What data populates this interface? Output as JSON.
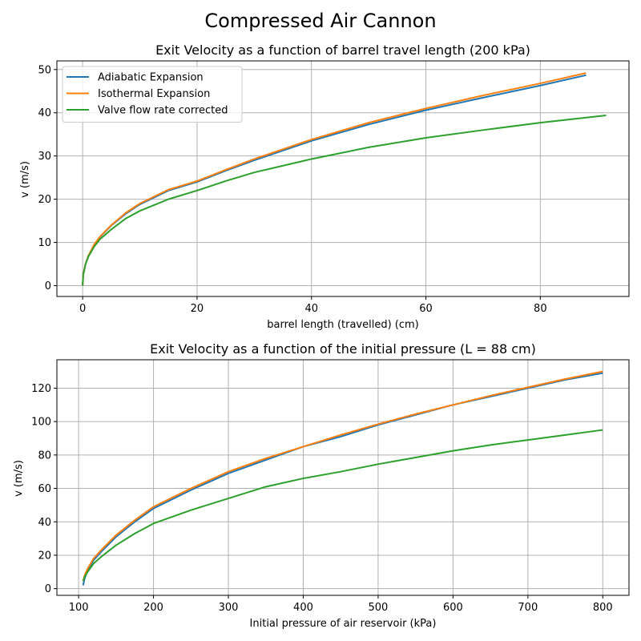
{
  "figure": {
    "title": "Compressed Air Cannon"
  },
  "series_colors": [
    "#1f77b4",
    "#ff7f0e",
    "#2ca02c"
  ],
  "chart_data": [
    {
      "type": "line",
      "title": "Exit Velocity as a function of barrel travel length (200 kPa)",
      "xlabel": "barrel length (travelled) (cm)",
      "ylabel": "v (m/s)",
      "xlim": [
        -4.5,
        95.5
      ],
      "ylim": [
        -2.5,
        52
      ],
      "xticks": [
        0,
        20,
        40,
        60,
        80
      ],
      "yticks": [
        0,
        10,
        20,
        30,
        40,
        50
      ],
      "grid": true,
      "legend": "upper left",
      "series": [
        {
          "name": "Adiabatic Expansion",
          "x": [
            0,
            0.1,
            0.5,
            1,
            2,
            3,
            5,
            7.5,
            10,
            15,
            20,
            25,
            30,
            40,
            50,
            60,
            70,
            80,
            88
          ],
          "y": [
            0,
            2.5,
            5.0,
            6.9,
            9.4,
            11.2,
            13.9,
            16.6,
            18.8,
            22.0,
            24.0,
            26.6,
            29.0,
            33.5,
            37.3,
            40.6,
            43.5,
            46.3,
            48.7
          ]
        },
        {
          "name": "Isothermal Expansion",
          "x": [
            0,
            0.1,
            0.5,
            1,
            2,
            3,
            5,
            7.5,
            10,
            15,
            20,
            25,
            30,
            40,
            50,
            60,
            70,
            80,
            88
          ],
          "y": [
            0,
            2.5,
            5.0,
            6.9,
            9.5,
            11.3,
            14.0,
            16.8,
            19.0,
            22.2,
            24.2,
            26.8,
            29.3,
            33.8,
            37.7,
            41.0,
            44.0,
            46.8,
            49.2
          ]
        },
        {
          "name": "Valve flow rate corrected",
          "x": [
            0,
            0.1,
            0.5,
            1,
            2,
            3,
            5,
            7.5,
            10,
            15,
            20,
            25,
            30,
            40,
            50,
            60,
            70,
            80,
            91.5
          ],
          "y": [
            0,
            2.4,
            4.9,
            6.7,
            9.0,
            10.7,
            13.0,
            15.5,
            17.3,
            20.0,
            22.0,
            24.2,
            26.2,
            29.3,
            32.0,
            34.2,
            36.0,
            37.7,
            39.4
          ]
        }
      ]
    },
    {
      "type": "line",
      "title": "Exit Velocity as a function of the initial pressure (L = 88 cm)",
      "xlabel": "Initial pressure of air reservoir (kPa)",
      "ylabel": "v (m/s)",
      "xlim": [
        71,
        835
      ],
      "ylim": [
        -4,
        137
      ],
      "xticks": [
        100,
        200,
        300,
        400,
        500,
        600,
        700,
        800
      ],
      "yticks": [
        0,
        20,
        40,
        60,
        80,
        100,
        120
      ],
      "grid": true,
      "legend": "none",
      "series": [
        {
          "name": "Adiabatic Expansion",
          "x": [
            106,
            108,
            112,
            120,
            130,
            150,
            175,
            200,
            250,
            300,
            350,
            400,
            450,
            500,
            550,
            600,
            650,
            700,
            750,
            800
          ],
          "y": [
            2,
            6,
            11,
            17,
            22,
            31,
            40,
            48,
            59,
            69,
            77,
            85,
            91,
            98,
            104,
            110,
            115,
            120,
            125,
            129
          ]
        },
        {
          "name": "Isothermal Expansion",
          "x": [
            106,
            108,
            112,
            120,
            130,
            150,
            175,
            200,
            250,
            300,
            350,
            400,
            450,
            500,
            550,
            600,
            650,
            700,
            750,
            800
          ],
          "y": [
            4.5,
            8,
            12,
            18,
            23,
            32,
            41,
            49,
            60,
            70,
            78,
            85,
            92,
            98.5,
            104.5,
            110,
            115.5,
            120.5,
            125.5,
            130
          ]
        },
        {
          "name": "Valve flow rate corrected",
          "x": [
            106,
            108,
            112,
            120,
            130,
            150,
            175,
            200,
            250,
            300,
            350,
            400,
            450,
            500,
            550,
            600,
            650,
            700,
            750,
            800
          ],
          "y": [
            4.5,
            7,
            10,
            15,
            19,
            26,
            33,
            39,
            47,
            54,
            61,
            66,
            70,
            74.5,
            78.5,
            82.5,
            86,
            89,
            92,
            95
          ]
        }
      ]
    }
  ]
}
